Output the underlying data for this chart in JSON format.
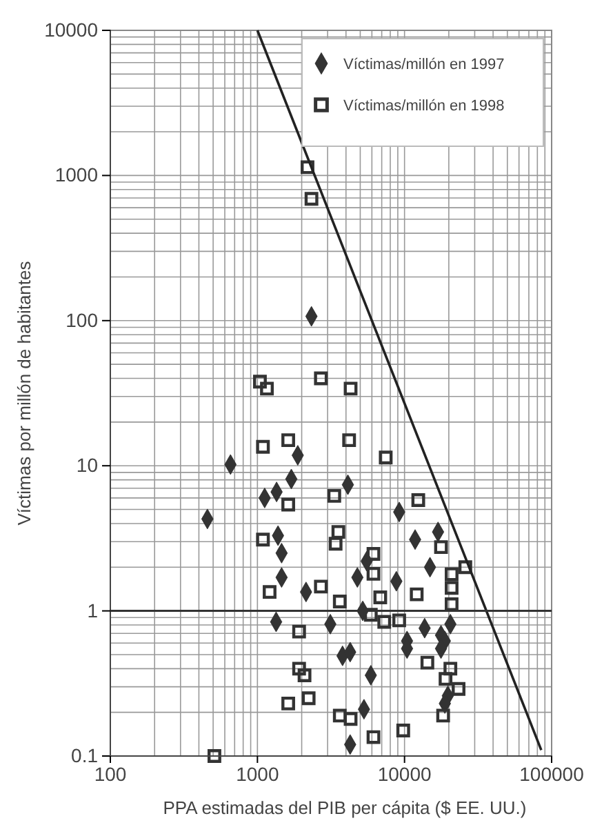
{
  "chart_data": {
    "type": "scatter",
    "xlabel": "PPA estimadas del PIB per cápita ($ EE. UU.)",
    "ylabel": "Víctimas por millón de habitantes",
    "log": "xy",
    "grid": true,
    "legend": "top right",
    "ref_lines": [
      {
        "axis": "y",
        "value": 1,
        "color": "#333333",
        "line_style": "solid"
      }
    ],
    "xlim": [
      100,
      100000
    ],
    "xticks": [
      100,
      1000,
      10000,
      100000
    ],
    "ylim": [
      0.1,
      10000
    ],
    "yticks": [
      0.1,
      1,
      10,
      100,
      1000,
      10000
    ],
    "series": [
      {
        "name": "Víctimas/millón en 1997",
        "color": "#333333",
        "marker": "diamond",
        "x": [
          2330,
          656,
          457,
          1880,
          1700,
          1350,
          1120,
          1380,
          1460,
          1460,
          4120,
          9200,
          11800,
          16900,
          5530,
          14900,
          4780,
          8800,
          2140,
          1340,
          5200,
          3130,
          10400,
          10400,
          13700,
          17700,
          18800,
          17700,
          20500,
          3790,
          4270,
          5900,
          19700,
          18800,
          5300,
          4270
        ],
        "values": [
          107,
          10.2,
          4.3,
          11.8,
          8.1,
          6.6,
          6.0,
          3.3,
          2.5,
          1.7,
          7.4,
          4.8,
          3.1,
          3.5,
          2.2,
          2.0,
          1.7,
          1.6,
          1.35,
          0.84,
          1.0,
          0.81,
          0.62,
          0.55,
          0.76,
          0.68,
          0.62,
          0.55,
          0.81,
          0.49,
          0.52,
          0.36,
          0.26,
          0.23,
          0.21,
          0.12
        ]
      },
      {
        "name": "Víctimas/millón en 1998",
        "color": "#333333",
        "marker": "square",
        "x": [
          2190,
          2330,
          1040,
          1160,
          2700,
          1090,
          1620,
          4300,
          4200,
          7450,
          1620,
          3330,
          12400,
          1090,
          3550,
          3400,
          17700,
          6150,
          6150,
          25900,
          20900,
          1210,
          2700,
          1920,
          1920,
          2090,
          1620,
          2230,
          510,
          3630,
          6840,
          12100,
          20900,
          20900,
          5900,
          7280,
          9200,
          14300,
          20500,
          19000,
          23300,
          3630,
          4300,
          18300,
          6150,
          9800
        ],
        "values": [
          1140,
          690,
          38,
          34,
          40,
          13.5,
          15,
          34,
          15,
          11.4,
          5.4,
          6.2,
          5.8,
          3.1,
          3.5,
          2.9,
          2.75,
          2.47,
          1.8,
          2.0,
          1.79,
          1.35,
          1.47,
          0.72,
          0.4,
          0.36,
          0.23,
          0.25,
          0.1,
          1.16,
          1.24,
          1.3,
          1.44,
          1.11,
          0.94,
          0.84,
          0.86,
          0.44,
          0.4,
          0.34,
          0.29,
          0.19,
          0.18,
          0.19,
          0.135,
          0.15
        ]
      },
      {
        "type": "line",
        "color": "#222222",
        "marker": "none",
        "line_style": "solid",
        "x": [
          1000,
          85000
        ],
        "values": [
          10000,
          0.11
        ]
      }
    ]
  }
}
